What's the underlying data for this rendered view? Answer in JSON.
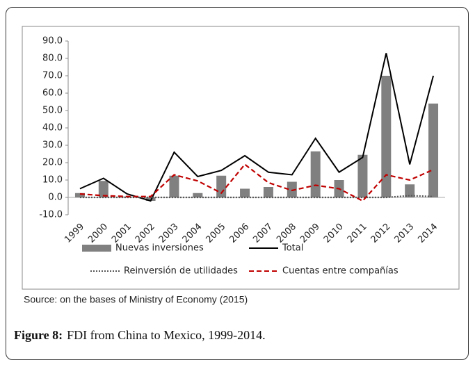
{
  "chart_data": {
    "type": "bar",
    "categories": [
      "1999",
      "2000",
      "2001",
      "2002",
      "2003",
      "2004",
      "2005",
      "2006",
      "2007",
      "2008",
      "2009",
      "2010",
      "2011",
      "2012",
      "2013",
      "2014"
    ],
    "series": [
      {
        "name": "Nuevas inversiones",
        "type": "bar",
        "color": "#808080",
        "values": [
          2.5,
          9.5,
          0.5,
          -2,
          12.5,
          2.5,
          12.5,
          5,
          6,
          9,
          26.5,
          10,
          24.5,
          70,
          7.5,
          54
        ]
      },
      {
        "name": "Total",
        "type": "line",
        "dash": "solid",
        "color": "#000000",
        "values": [
          5,
          11,
          2,
          -2,
          26,
          12,
          15.5,
          24,
          14.5,
          13,
          34,
          14.5,
          23,
          83,
          19,
          70
        ]
      },
      {
        "name": "Reinversión de utilidades",
        "type": "line",
        "dash": "dotted",
        "color": "#555555",
        "values": [
          0,
          0,
          0,
          0,
          0,
          0,
          0,
          0,
          0,
          0,
          0,
          0,
          0,
          0,
          1,
          0.5
        ]
      },
      {
        "name": "Cuentas entre compañías",
        "type": "line",
        "dash": "dashed",
        "color": "#c00000",
        "values": [
          2,
          1,
          0.5,
          0.5,
          13,
          9.5,
          2.5,
          19,
          8.5,
          4,
          7,
          5,
          -2,
          13,
          10,
          16
        ]
      }
    ],
    "ylim": [
      -10,
      90
    ],
    "yticks": [
      {
        "value": -10,
        "label": "-10.0"
      },
      {
        "value": 0,
        "label": "0.0"
      },
      {
        "value": 10,
        "label": "10.0"
      },
      {
        "value": 20,
        "label": "20.0"
      },
      {
        "value": 30,
        "label": "30.0"
      },
      {
        "value": 40,
        "label": "40.0"
      },
      {
        "value": 50,
        "label": "50.0"
      },
      {
        "value": 60,
        "label": "60.0"
      },
      {
        "value": 70,
        "label": "70.0"
      },
      {
        "value": 80,
        "label": "80.0"
      },
      {
        "value": 90,
        "label": "90.0"
      }
    ],
    "grid": false,
    "source": "Source: on the bases of Ministry of Economy (2015)",
    "caption_label": "Figure 8:",
    "caption": "FDI from China to Mexico, 1999-2014."
  }
}
